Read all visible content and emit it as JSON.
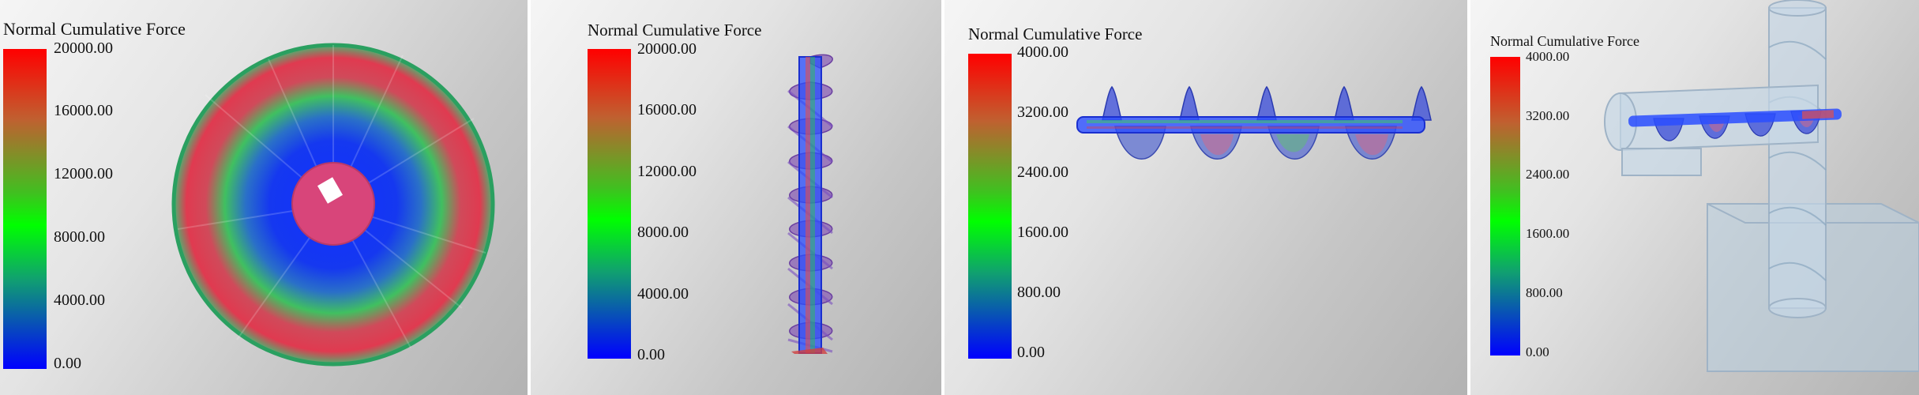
{
  "panels": [
    {
      "legend": {
        "title": "Normal Cumulative Force",
        "ticks": [
          "20000.00",
          "16000.00",
          "12000.00",
          "8000.00",
          "4000.00",
          "0.00"
        ]
      }
    },
    {
      "legend": {
        "title": "Normal Cumulative Force",
        "ticks": [
          "20000.00",
          "16000.00",
          "12000.00",
          "8000.00",
          "4000.00",
          "0.00"
        ]
      }
    },
    {
      "legend": {
        "title": "Normal Cumulative Force",
        "ticks": [
          "4000.00",
          "3200.00",
          "2400.00",
          "1600.00",
          "800.00",
          "0.00"
        ]
      }
    },
    {
      "legend": {
        "title": "Normal Cumulative Force",
        "ticks": [
          "4000.00",
          "3200.00",
          "2400.00",
          "1600.00",
          "800.00",
          "0.00"
        ]
      }
    }
  ],
  "colors": {
    "scale_max": "#ff0000",
    "scale_mid": "#00ff00",
    "scale_min": "#0000ff",
    "hub": "#d8457a",
    "housing": "#b9cfe0"
  }
}
